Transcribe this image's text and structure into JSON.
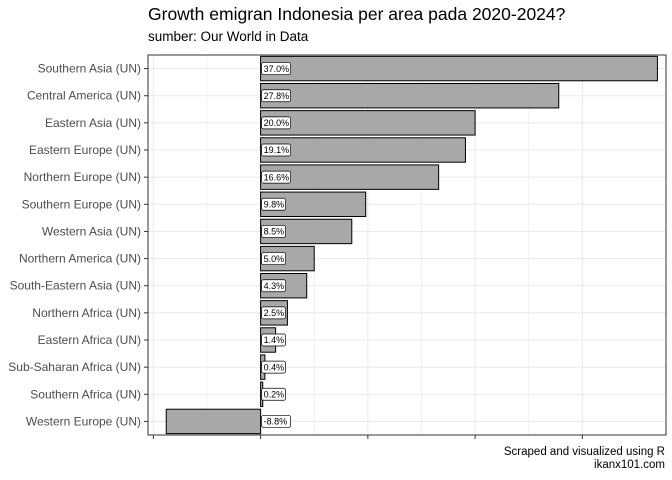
{
  "title": "Growth emigran Indonesia per area pada 2020-2024?",
  "subtitle": "sumber: Our World in Data",
  "caption_line1": "Scraped and visualized using R",
  "caption_line2": "ikanx101.com",
  "colors": {
    "bar_fill": "#a8a8a8",
    "bar_stroke": "#000000",
    "grid": "#ebebeb",
    "panel_border": "#333333"
  },
  "chart_data": {
    "type": "bar",
    "orientation": "horizontal",
    "categories": [
      "Southern Asia (UN)",
      "Central America (UN)",
      "Eastern Asia (UN)",
      "Eastern Europe (UN)",
      "Northern Europe (UN)",
      "Southern Europe (UN)",
      "Western Asia (UN)",
      "Northern America (UN)",
      "South-Eastern Asia (UN)",
      "Northern Africa (UN)",
      "Eastern Africa (UN)",
      "Sub-Saharan Africa (UN)",
      "Southern Africa (UN)",
      "Western Europe (UN)"
    ],
    "values": [
      37.0,
      27.8,
      20.0,
      19.1,
      16.6,
      9.8,
      8.5,
      5.0,
      4.3,
      2.5,
      1.4,
      0.4,
      0.2,
      -8.8
    ],
    "labels": [
      "37.0%",
      "27.8%",
      "20.0%",
      "19.1%",
      "16.6%",
      "9.8%",
      "8.5%",
      "5.0%",
      "4.3%",
      "2.5%",
      "1.4%",
      "0.4%",
      "0.2%",
      "-8.8%"
    ],
    "xlim": [
      -10.5,
      37.8
    ],
    "x_ticks": [
      -10,
      0,
      10,
      20,
      30
    ],
    "x_tick_labels_shown": false,
    "xlabel": "",
    "ylabel": "",
    "grid": true,
    "legend": "none"
  }
}
